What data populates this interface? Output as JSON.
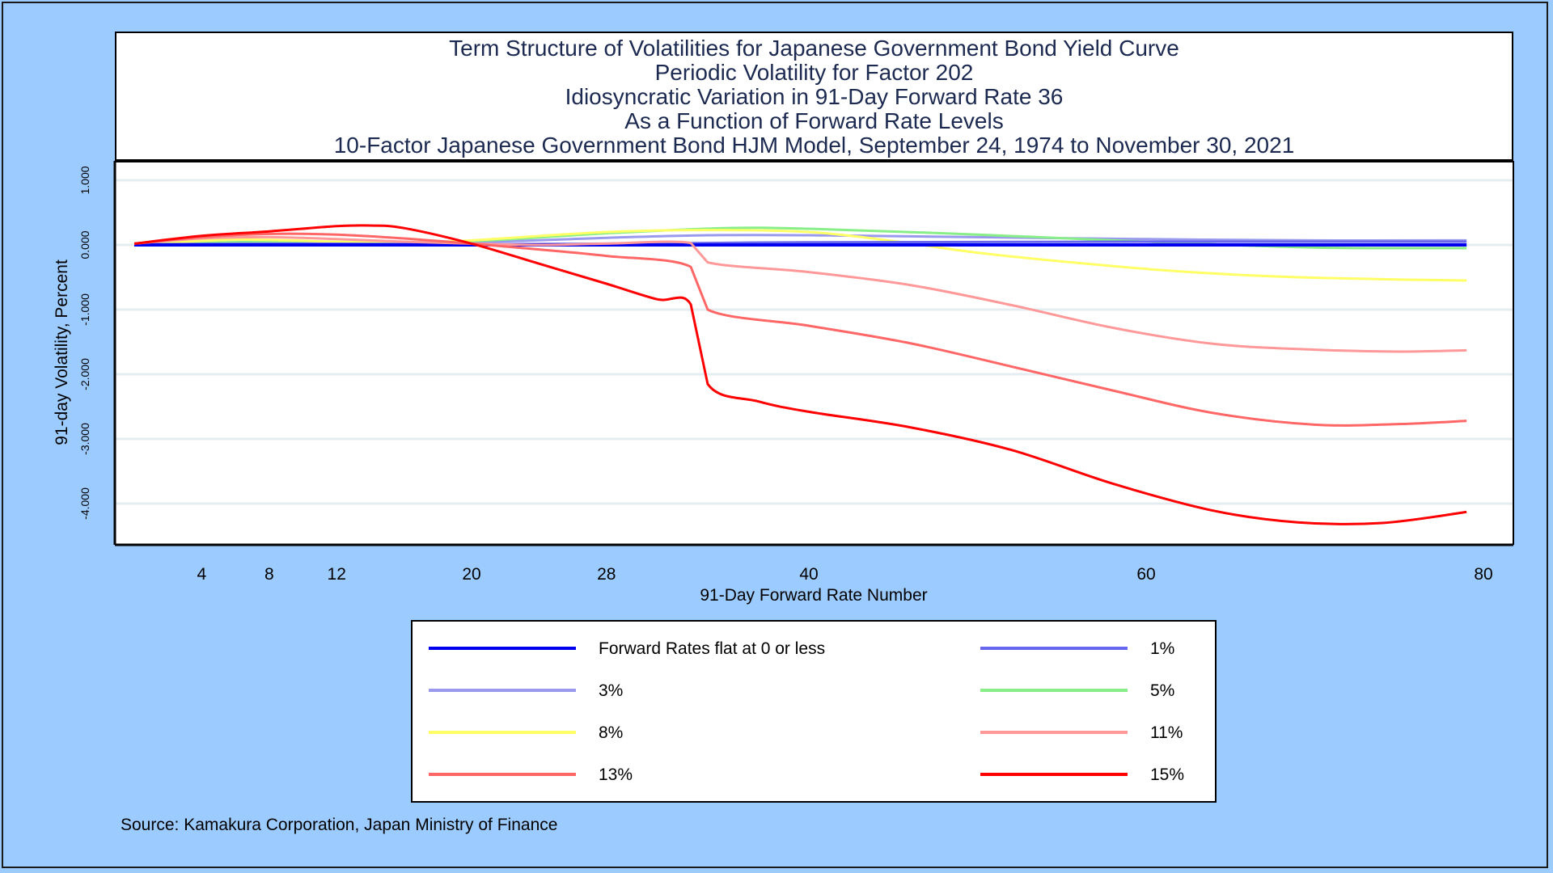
{
  "chart_data": {
    "type": "line",
    "title_lines": [
      "Term Structure of Volatilities for Japanese Government Bond Yield Curve",
      "Periodic Volatility for Factor 202",
      "Idiosyncratic Variation in 91-Day Forward Rate 36",
      "As a Function of Forward Rate Levels",
      "10-Factor Japanese Government Bond HJM Model, September 24, 1974 to November 30, 2021"
    ],
    "xlabel": "91-Day Forward Rate Number",
    "ylabel": "91-day Volatility, Percent",
    "xlim": [
      -2.5,
      80.5
    ],
    "ylim": [
      -4.6,
      1.3
    ],
    "x_ticks": [
      4,
      8,
      12,
      20,
      28,
      40,
      60,
      80
    ],
    "y_ticks": [
      {
        "value": 1,
        "label": "1.000"
      },
      {
        "value": 0,
        "label": "0.000"
      },
      {
        "value": -1,
        "label": "-1.000"
      },
      {
        "value": -2,
        "label": "-2.000"
      },
      {
        "value": -3,
        "label": "-3.000"
      },
      {
        "value": -4,
        "label": "-4.000"
      }
    ],
    "grid": "horizontal",
    "legend_placement": "bottom",
    "source": "Source: Kamakura Corporation, Japan Ministry of Finance",
    "series": [
      {
        "name": "Forward Rates flat at 0 or less",
        "color": "#0000ee",
        "points": [
          [
            0,
            0
          ],
          [
            79,
            0
          ]
        ]
      },
      {
        "name": "1%",
        "color": "#6666ee",
        "points": [
          [
            0,
            0.01
          ],
          [
            10,
            0.02
          ],
          [
            20,
            0.01
          ],
          [
            34,
            0.03
          ],
          [
            40,
            0.04
          ],
          [
            60,
            0.05
          ],
          [
            79,
            0.05
          ]
        ]
      },
      {
        "name": "3%",
        "color": "#9999ee",
        "points": [
          [
            0,
            0.01
          ],
          [
            8,
            0.05
          ],
          [
            14,
            0.04
          ],
          [
            20,
            0.04
          ],
          [
            28,
            0.11
          ],
          [
            34,
            0.15
          ],
          [
            40,
            0.15
          ],
          [
            50,
            0.12
          ],
          [
            60,
            0.09
          ],
          [
            70,
            0.07
          ],
          [
            79,
            0.07
          ]
        ]
      },
      {
        "name": "5%",
        "color": "#88ee88",
        "points": [
          [
            0,
            0.01
          ],
          [
            6,
            0.04
          ],
          [
            12,
            0.04
          ],
          [
            20,
            0.06
          ],
          [
            28,
            0.18
          ],
          [
            35,
            0.26
          ],
          [
            40,
            0.25
          ],
          [
            50,
            0.16
          ],
          [
            60,
            0.05
          ],
          [
            70,
            -0.04
          ],
          [
            79,
            -0.05
          ]
        ]
      },
      {
        "name": "8%",
        "color": "#ffff66",
        "points": [
          [
            0,
            0.01
          ],
          [
            6,
            0.08
          ],
          [
            12,
            0.05
          ],
          [
            16,
            0.03
          ],
          [
            20,
            0.07
          ],
          [
            28,
            0.2
          ],
          [
            34,
            0.23
          ],
          [
            40,
            0.2
          ],
          [
            45,
            0.06
          ],
          [
            50,
            -0.12
          ],
          [
            56,
            -0.28
          ],
          [
            62,
            -0.41
          ],
          [
            68,
            -0.49
          ],
          [
            74,
            -0.53
          ],
          [
            79,
            -0.55
          ]
        ]
      },
      {
        "name": "11%",
        "color": "#ff9999",
        "points": [
          [
            0,
            0.02
          ],
          [
            4,
            0.1
          ],
          [
            8,
            0.12
          ],
          [
            12,
            0.09
          ],
          [
            16,
            0.05
          ],
          [
            20,
            0.02
          ],
          [
            24,
            0.0
          ],
          [
            28,
            0.02
          ],
          [
            33,
            0.03
          ],
          [
            34,
            -0.27
          ],
          [
            40,
            -0.42
          ],
          [
            46,
            -0.62
          ],
          [
            52,
            -0.93
          ],
          [
            58,
            -1.28
          ],
          [
            64,
            -1.53
          ],
          [
            70,
            -1.62
          ],
          [
            75,
            -1.65
          ],
          [
            79,
            -1.63
          ]
        ]
      },
      {
        "name": "13%",
        "color": "#ff6666",
        "points": [
          [
            0,
            0.02
          ],
          [
            4,
            0.12
          ],
          [
            8,
            0.17
          ],
          [
            12,
            0.16
          ],
          [
            16,
            0.1
          ],
          [
            20,
            0.02
          ],
          [
            24,
            -0.07
          ],
          [
            28,
            -0.17
          ],
          [
            33,
            -0.34
          ],
          [
            34,
            -1.0
          ],
          [
            40,
            -1.25
          ],
          [
            46,
            -1.52
          ],
          [
            52,
            -1.88
          ],
          [
            58,
            -2.25
          ],
          [
            64,
            -2.6
          ],
          [
            70,
            -2.78
          ],
          [
            75,
            -2.77
          ],
          [
            79,
            -2.72
          ]
        ]
      },
      {
        "name": "15%",
        "color": "#ff0000",
        "points": [
          [
            0,
            0.02
          ],
          [
            4,
            0.14
          ],
          [
            8,
            0.21
          ],
          [
            12,
            0.29
          ],
          [
            14,
            0.3
          ],
          [
            16,
            0.26
          ],
          [
            20,
            0.02
          ],
          [
            24,
            -0.29
          ],
          [
            28,
            -0.6
          ],
          [
            31,
            -0.84
          ],
          [
            33,
            -0.92
          ],
          [
            34,
            -2.15
          ],
          [
            37,
            -2.42
          ],
          [
            40,
            -2.58
          ],
          [
            46,
            -2.82
          ],
          [
            52,
            -3.17
          ],
          [
            58,
            -3.69
          ],
          [
            64,
            -4.11
          ],
          [
            69,
            -4.29
          ],
          [
            74,
            -4.3
          ],
          [
            79,
            -4.13
          ]
        ]
      }
    ]
  }
}
